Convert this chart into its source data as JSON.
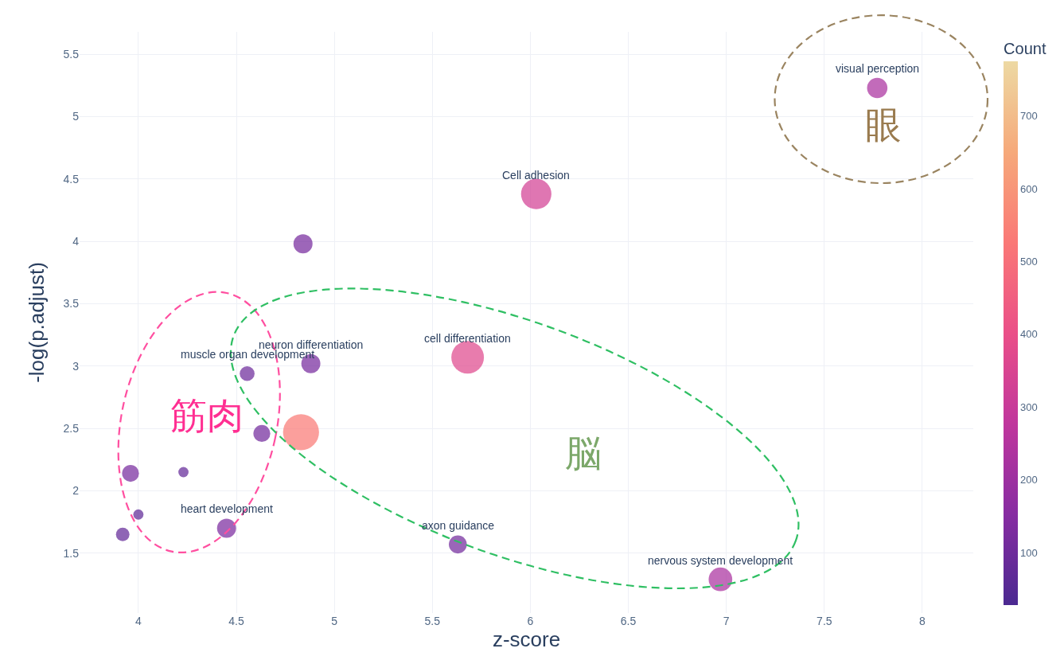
{
  "chart_data": {
    "type": "bubble",
    "xlabel": "z-score",
    "ylabel": "-log(p.adjust)",
    "clabel": "Count",
    "x": [
      7.77,
      6.03,
      4.84,
      4.88,
      5.68,
      4.555,
      4.63,
      4.83,
      3.96,
      4.23,
      4.0,
      3.92,
      4.45,
      5.63,
      6.97
    ],
    "values": [
      5.23,
      4.38,
      3.98,
      3.02,
      3.07,
      2.94,
      2.46,
      2.47,
      2.14,
      2.15,
      1.81,
      1.65,
      1.7,
      1.57,
      1.29
    ],
    "sizes": [
      0.32,
      0.71,
      0.28,
      0.28,
      0.82,
      0.17,
      0.22,
      1,
      0.22,
      0.08,
      0.08,
      0.14,
      0.28,
      0.25,
      0.43
    ],
    "cvalues": [
      230,
      330,
      120,
      120,
      370,
      100,
      110,
      530,
      120,
      80,
      70,
      80,
      130,
      110,
      230
    ],
    "clim": [
      28,
      775
    ],
    "cticks": [
      100,
      200,
      300,
      400,
      500,
      600,
      700
    ],
    "xlim": [
      3.7,
      8.26
    ],
    "xticks": [
      4,
      4.5,
      5,
      5.5,
      6,
      6.5,
      7,
      7.5,
      8
    ],
    "ylim": [
      1.02,
      5.68
    ],
    "yticks": [
      1.5,
      2,
      2.5,
      3,
      3.5,
      4,
      4.5,
      5,
      5.5
    ],
    "grid": true,
    "legend": false,
    "marker": "circle",
    "annotations": [
      {
        "text": "visual perception",
        "x": 7.77,
        "y": 5.23
      },
      {
        "text": "Cell adhesion",
        "x": 6.03,
        "y": 4.38
      },
      {
        "text": "neuron differentiation",
        "x": 4.88,
        "y": 3.02
      },
      {
        "text": "cell differentiation",
        "x": 5.68,
        "y": 3.07
      },
      {
        "text": "muscle organ development",
        "x": 4.555,
        "y": 2.94
      },
      {
        "text": "heart development",
        "x": 4.45,
        "y": 1.7
      },
      {
        "text": "axon guidance",
        "x": 5.63,
        "y": 1.57
      },
      {
        "text": "nervous system development",
        "x": 6.97,
        "y": 1.29
      },
      "筋肉",
      "脳",
      "眼"
    ]
  }
}
